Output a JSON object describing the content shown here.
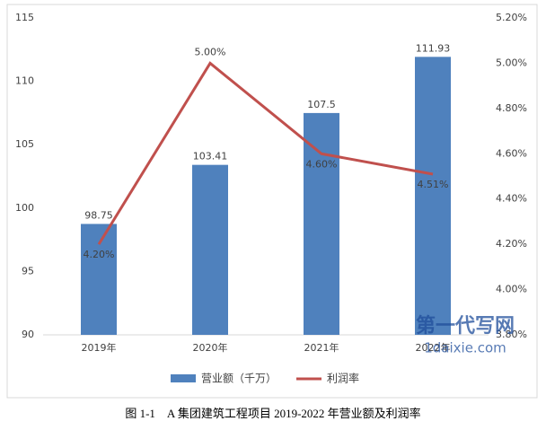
{
  "chart_data": {
    "type": "bar-line",
    "categories": [
      "2019年",
      "2020年",
      "2021年",
      "2022年"
    ],
    "series": [
      {
        "name": "营业额（千万）",
        "type": "bar",
        "color": "#4f81bd",
        "values": [
          98.75,
          103.41,
          107.5,
          111.93
        ]
      },
      {
        "name": "利润率",
        "type": "line",
        "axis": "y2",
        "color": "#c0504d",
        "values": [
          4.2,
          5.0,
          4.6,
          4.51
        ],
        "value_labels": [
          "4.20%",
          "5.00%",
          "4.60%",
          "4.51%"
        ]
      }
    ],
    "ylim": [
      90,
      115
    ],
    "yticks": [
      90,
      95,
      100,
      105,
      110,
      115
    ],
    "y2lim": [
      3.8,
      5.2
    ],
    "y2ticks": [
      {
        "value": 3.8,
        "label": "3.80%"
      },
      {
        "value": 4.0,
        "label": "4.00%"
      },
      {
        "value": 4.2,
        "label": "4.20%"
      },
      {
        "value": 4.4,
        "label": "4.40%"
      },
      {
        "value": 4.6,
        "label": "4.60%"
      },
      {
        "value": 4.8,
        "label": "4.80%"
      },
      {
        "value": 5.0,
        "label": "5.00%"
      },
      {
        "value": 5.2,
        "label": "5.20%"
      }
    ],
    "grid": false,
    "legend": "bottom"
  },
  "caption": "图 1-1　A 集团建筑工程项目 2019-2022 年营业额及利润率",
  "watermark": {
    "name": "第一代写网",
    "url": "1daixie.com"
  }
}
